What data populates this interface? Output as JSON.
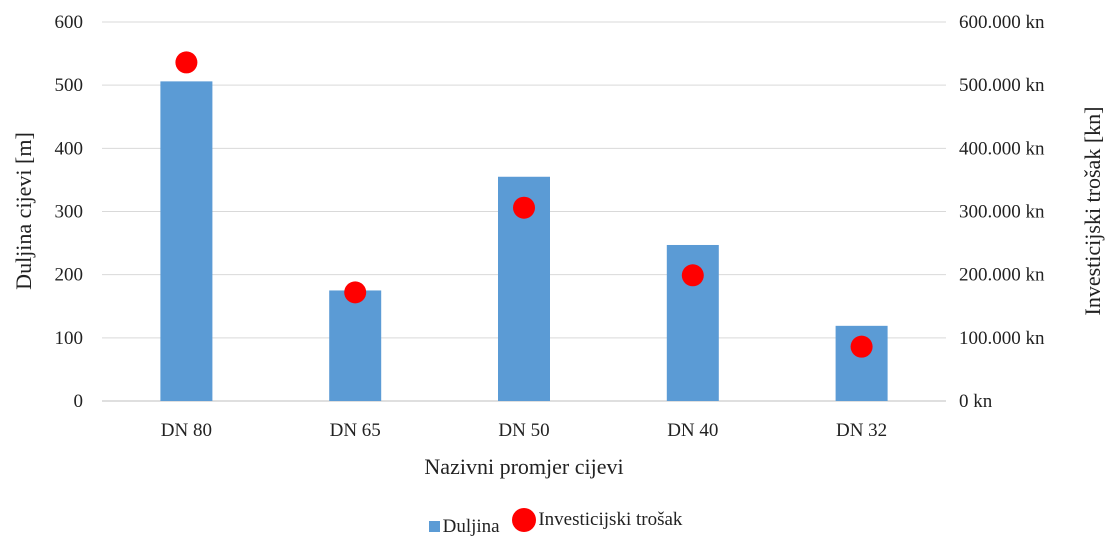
{
  "chart_data": {
    "type": "bar",
    "categories": [
      "DN 80",
      "DN 65",
      "DN 50",
      "DN 40",
      "DN 32"
    ],
    "xlabel": "Nazivni promjer cijevi",
    "ylabel": "Duljina cijevi [m]",
    "y2label": "Investicijski trošak [kn]",
    "ylim": [
      0,
      600
    ],
    "y2lim": [
      0,
      600000
    ],
    "yticks": [
      "0",
      "100",
      "200",
      "300",
      "400",
      "500",
      "600"
    ],
    "y2ticks": [
      "0 kn",
      "100.000 kn",
      "200.000 kn",
      "300.000 kn",
      "400.000 kn",
      "500.000 kn",
      "600.000 kn"
    ],
    "grid": true,
    "legend_position": "bottom",
    "series": [
      {
        "name": "Duljina",
        "type": "bar",
        "axis": "left",
        "color": "#5b9bd5",
        "values": [
          506,
          175,
          355,
          247,
          119
        ]
      },
      {
        "name": "Investicijski trošak",
        "type": "scatter",
        "axis": "right",
        "color": "#ff0000",
        "values": [
          536000,
          172000,
          306000,
          199000,
          86000
        ]
      }
    ]
  }
}
